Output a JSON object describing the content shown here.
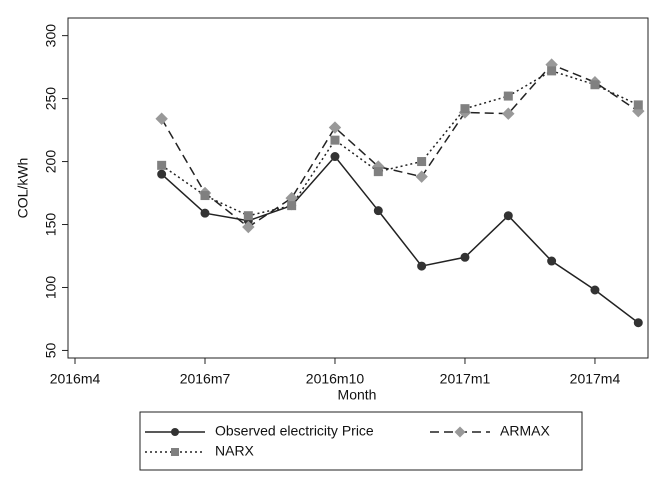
{
  "chart_data": {
    "type": "line",
    "x_label": "Month",
    "y_label": "COL/kWh",
    "categories": [
      "2016m4",
      null,
      null,
      "2016m7",
      null,
      null,
      "2016m10",
      null,
      null,
      "2017m1",
      null,
      null,
      "2017m4",
      null
    ],
    "ylim": [
      44,
      314
    ],
    "yticks": [
      50,
      100,
      150,
      200,
      250,
      300
    ],
    "series": [
      {
        "name": "Observed electricity Price",
        "color": "#222222",
        "marker_color": "#333333",
        "marker": "circle",
        "line_style": "solid",
        "values": [
          null,
          null,
          190,
          159,
          153,
          165,
          204,
          161,
          117,
          124,
          157,
          121,
          98,
          72
        ]
      },
      {
        "name": "ARMAX",
        "color": "#222222",
        "marker_color": "#999999",
        "marker": "diamond",
        "line_style": "dashed",
        "values": [
          null,
          null,
          234,
          175,
          148,
          171,
          227,
          196,
          188,
          239,
          238,
          277,
          263,
          240
        ]
      },
      {
        "name": "NARX",
        "color": "#222222",
        "marker_color": "#808080",
        "marker": "square",
        "line_style": "dotted",
        "values": [
          null,
          null,
          197,
          173,
          157,
          165,
          217,
          192,
          200,
          242,
          252,
          272,
          261,
          245
        ]
      }
    ]
  }
}
